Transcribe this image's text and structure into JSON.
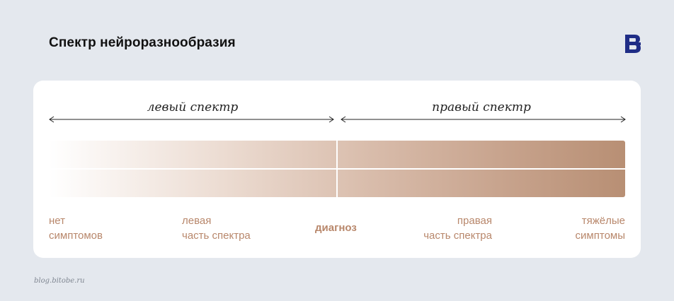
{
  "title": "Спектр нейроразнообразия",
  "logo_icon": "bitobe-b-logo",
  "spectrum": {
    "left_label": "левый спектр",
    "right_label": "правый спектр",
    "colors": {
      "start": "#ffffff",
      "end": "#b88f74",
      "text": "#b8876b"
    }
  },
  "scale": {
    "no_symptoms": [
      "нет",
      "симптомов"
    ],
    "left_part": [
      "левая",
      "часть спектра"
    ],
    "diagnosis": "диагноз",
    "right_part": [
      "правая",
      "часть спектра"
    ],
    "severe": [
      "тяжёлые",
      "симптомы"
    ]
  },
  "footer": "blog.bitobe.ru"
}
